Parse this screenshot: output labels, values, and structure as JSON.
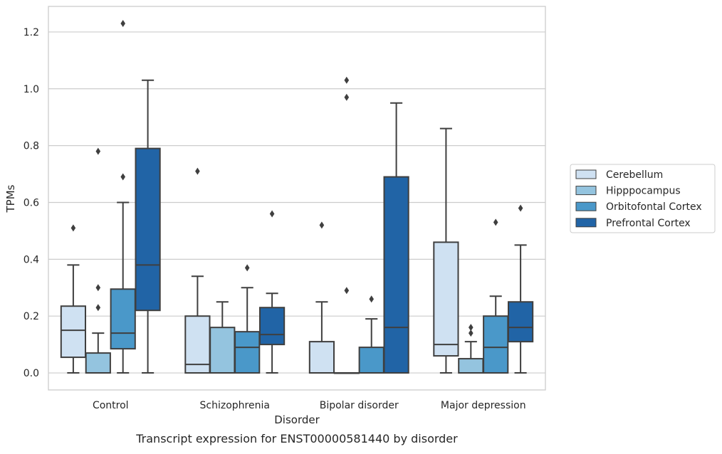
{
  "chart_data": {
    "type": "box",
    "caption": "Transcript expression for ENST00000581440 by disorder",
    "xlabel": "Disorder",
    "ylabel": "TPMs",
    "ylim": [
      -0.06,
      1.29
    ],
    "yticks": [
      0.0,
      0.2,
      0.4,
      0.6,
      0.8,
      1.0,
      1.2
    ],
    "ytick_labels": [
      "0.0",
      "0.2",
      "0.4",
      "0.6",
      "0.8",
      "1.0",
      "1.2"
    ],
    "grid": "horizontal",
    "legend_position": "right",
    "categories": [
      "Control",
      "Schizophrenia",
      "Bipolar disorder",
      "Major depression"
    ],
    "series": [
      {
        "name": "Cerebellum",
        "color": "#cfe1f2",
        "boxes": [
          {
            "whisker_low": 0.0,
            "q1": 0.055,
            "median": 0.15,
            "q3": 0.235,
            "whisker_high": 0.38,
            "outliers": [
              0.51
            ]
          },
          {
            "whisker_low": 0.0,
            "q1": 0.0,
            "median": 0.03,
            "q3": 0.2,
            "whisker_high": 0.34,
            "outliers": [
              0.71
            ]
          },
          {
            "whisker_low": 0.0,
            "q1": 0.0,
            "median": 0.0,
            "q3": 0.11,
            "whisker_high": 0.25,
            "outliers": [
              0.52
            ]
          },
          {
            "whisker_low": 0.0,
            "q1": 0.06,
            "median": 0.1,
            "q3": 0.46,
            "whisker_high": 0.86,
            "outliers": []
          }
        ]
      },
      {
        "name": "Hipppocampus",
        "color": "#94c4df",
        "boxes": [
          {
            "whisker_low": 0.0,
            "q1": 0.0,
            "median": 0.0,
            "q3": 0.07,
            "whisker_high": 0.14,
            "outliers": [
              0.23,
              0.3,
              0.78
            ]
          },
          {
            "whisker_low": 0.0,
            "q1": 0.0,
            "median": 0.0,
            "q3": 0.16,
            "whisker_high": 0.25,
            "outliers": []
          },
          {
            "whisker_low": 0.0,
            "q1": 0.0,
            "median": 0.0,
            "q3": 0.0,
            "whisker_high": 0.0,
            "outliers": [
              0.29,
              0.97,
              1.03
            ]
          },
          {
            "whisker_low": 0.0,
            "q1": 0.0,
            "median": 0.0,
            "q3": 0.05,
            "whisker_high": 0.11,
            "outliers": [
              0.14,
              0.16
            ]
          }
        ]
      },
      {
        "name": "Orbitofontal Cortex",
        "color": "#4a98c9",
        "boxes": [
          {
            "whisker_low": 0.0,
            "q1": 0.085,
            "median": 0.14,
            "q3": 0.295,
            "whisker_high": 0.6,
            "outliers": [
              0.69,
              1.23
            ]
          },
          {
            "whisker_low": 0.0,
            "q1": 0.0,
            "median": 0.09,
            "q3": 0.145,
            "whisker_high": 0.3,
            "outliers": [
              0.37
            ]
          },
          {
            "whisker_low": 0.0,
            "q1": 0.0,
            "median": 0.0,
            "q3": 0.09,
            "whisker_high": 0.19,
            "outliers": [
              0.26
            ]
          },
          {
            "whisker_low": 0.0,
            "q1": 0.0,
            "median": 0.09,
            "q3": 0.2,
            "whisker_high": 0.27,
            "outliers": [
              0.53
            ]
          }
        ]
      },
      {
        "name": "Prefrontal Cortex",
        "color": "#2164a6",
        "boxes": [
          {
            "whisker_low": 0.0,
            "q1": 0.22,
            "median": 0.38,
            "q3": 0.79,
            "whisker_high": 1.03,
            "outliers": []
          },
          {
            "whisker_low": 0.0,
            "q1": 0.1,
            "median": 0.135,
            "q3": 0.23,
            "whisker_high": 0.28,
            "outliers": [
              0.56
            ]
          },
          {
            "whisker_low": 0.0,
            "q1": 0.0,
            "median": 0.16,
            "q3": 0.69,
            "whisker_high": 0.95,
            "outliers": []
          },
          {
            "whisker_low": 0.0,
            "q1": 0.11,
            "median": 0.16,
            "q3": 0.25,
            "whisker_high": 0.45,
            "outliers": [
              0.58
            ]
          }
        ]
      }
    ]
  }
}
